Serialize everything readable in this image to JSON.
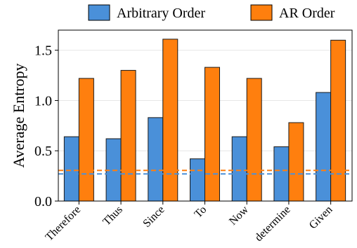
{
  "chart_data": {
    "type": "bar",
    "title": "",
    "xlabel": "",
    "ylabel": "Average Entropy",
    "ylim": [
      0,
      1.7
    ],
    "yticks": [
      "0.0",
      "0.5",
      "1.0",
      "1.5"
    ],
    "grid": "y-only",
    "legend_position": "top-center",
    "categories": [
      "Therefore",
      "Thus",
      "Since",
      "To",
      "Now",
      "determine",
      "Given"
    ],
    "series": [
      {
        "name": "Arbitrary Order",
        "color": "#4a90d9",
        "values": [
          0.64,
          0.62,
          0.83,
          0.42,
          0.64,
          0.54,
          1.08
        ]
      },
      {
        "name": "AR Order",
        "color": "#ff7f0e",
        "values": [
          1.22,
          1.3,
          1.61,
          1.33,
          1.22,
          0.78,
          1.6
        ]
      }
    ],
    "reference_lines": [
      {
        "value": 0.305,
        "color": "#ff7f0e",
        "style": "dashed"
      },
      {
        "value": 0.27,
        "color": "#4a90d9",
        "style": "dashed"
      }
    ]
  }
}
